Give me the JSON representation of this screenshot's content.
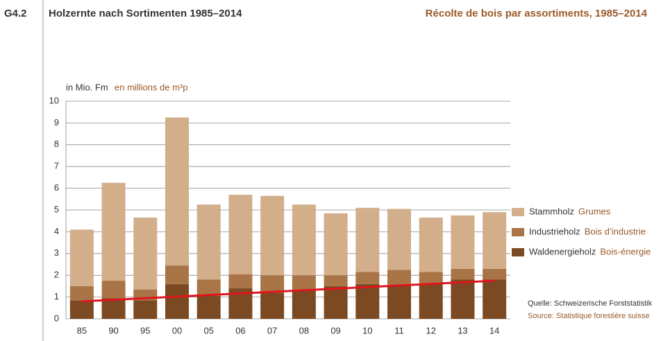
{
  "chart_data": {
    "type": "stacked_bar",
    "figure_number": "G4.2",
    "title": "Holzernte nach Sortimenten 1985–2014",
    "title_fr": "Récolte de bois par assortiments, 1985–2014",
    "ylabel": "in Mio. Fm",
    "ylabel_fr": "en millions de m³p",
    "categories": [
      "85",
      "90",
      "95",
      "00",
      "05",
      "06",
      "07",
      "08",
      "09",
      "10",
      "11",
      "12",
      "13",
      "14"
    ],
    "series": [
      {
        "name": "Waldenergieholz",
        "name_fr": "Bois-énergie",
        "color": "#7b4a22",
        "values": [
          0.85,
          0.95,
          0.85,
          1.6,
          1.05,
          1.4,
          1.2,
          1.3,
          1.5,
          1.6,
          1.55,
          1.6,
          1.8,
          1.8
        ]
      },
      {
        "name": "Industrieholz",
        "name_fr": "Bois d’industrie",
        "color": "#a97446",
        "values": [
          0.65,
          0.8,
          0.5,
          0.85,
          0.75,
          0.65,
          0.8,
          0.7,
          0.5,
          0.55,
          0.7,
          0.55,
          0.5,
          0.5
        ]
      },
      {
        "name": "Stammholz",
        "name_fr": "Grumes",
        "color": "#d3ae8b",
        "values": [
          2.6,
          4.5,
          3.3,
          6.8,
          3.45,
          3.65,
          3.65,
          3.25,
          2.85,
          2.95,
          2.8,
          2.5,
          2.45,
          2.6
        ]
      }
    ],
    "trend_line": {
      "color": "#e0141e",
      "values": [
        0.8,
        1.75
      ]
    },
    "ylim": [
      0,
      10
    ],
    "yticks": [
      0,
      1,
      2,
      3,
      4,
      5,
      6,
      7,
      8,
      9,
      10
    ],
    "grid": true,
    "source": "Quelle: Schweizerische Forststatistik",
    "source_fr": "Source: Statistique forestière suisse"
  }
}
